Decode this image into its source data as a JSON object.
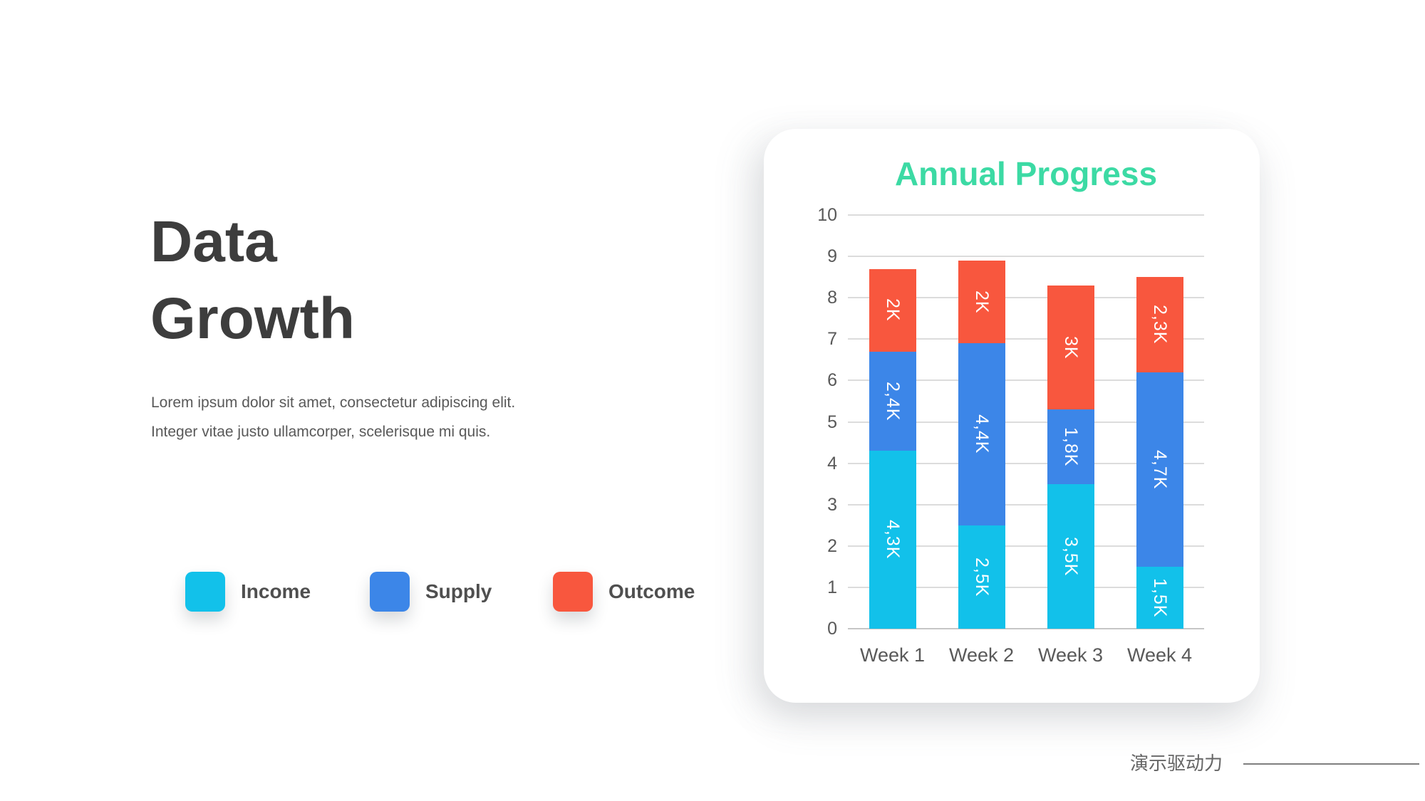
{
  "slide": {
    "title": "Data\nGrowth",
    "description": "Lorem ipsum dolor sit amet, consectetur adipiscing elit.\nInteger vitae justo ullamcorper, scelerisque mi quis.",
    "footer": {
      "brand_text": "演示驱动力"
    }
  },
  "legend": {
    "items": [
      {
        "label": "Income",
        "color": "#12c1ea"
      },
      {
        "label": "Supply",
        "color": "#3c86e8"
      },
      {
        "label": "Outcome",
        "color": "#f8573e"
      }
    ]
  },
  "chart_data": {
    "type": "bar",
    "stacked": true,
    "title": "Annual Progress",
    "title_color": "#3cdaa4",
    "xlabel": "",
    "ylabel": "",
    "categories": [
      "Week 1",
      "Week 2",
      "Week 3",
      "Week 4"
    ],
    "series": [
      {
        "name": "Income",
        "color": "#12c1ea",
        "values": [
          4.3,
          2.5,
          3.5,
          1.5
        ],
        "labels": [
          "4,3K",
          "2,5K",
          "3,5K",
          "1,5K"
        ]
      },
      {
        "name": "Supply",
        "color": "#3c86e8",
        "values": [
          2.4,
          4.4,
          1.8,
          4.7
        ],
        "labels": [
          "2,4K",
          "4,4K",
          "1,8K",
          "4,7K"
        ]
      },
      {
        "name": "Outcome",
        "color": "#f8573e",
        "values": [
          2.0,
          2.0,
          3.0,
          2.3
        ],
        "labels": [
          "2K",
          "2K",
          "3K",
          "2,3K"
        ]
      }
    ],
    "totals": [
      8.7,
      8.9,
      8.3,
      8.5
    ],
    "ylim": [
      0,
      10
    ],
    "yticks": [
      0,
      1,
      2,
      3,
      4,
      5,
      6,
      7,
      8,
      9,
      10
    ],
    "grid": true,
    "legend_position": "outside-bottom-left",
    "value_label_color": "#ffffff",
    "value_label_rotation": 90
  }
}
